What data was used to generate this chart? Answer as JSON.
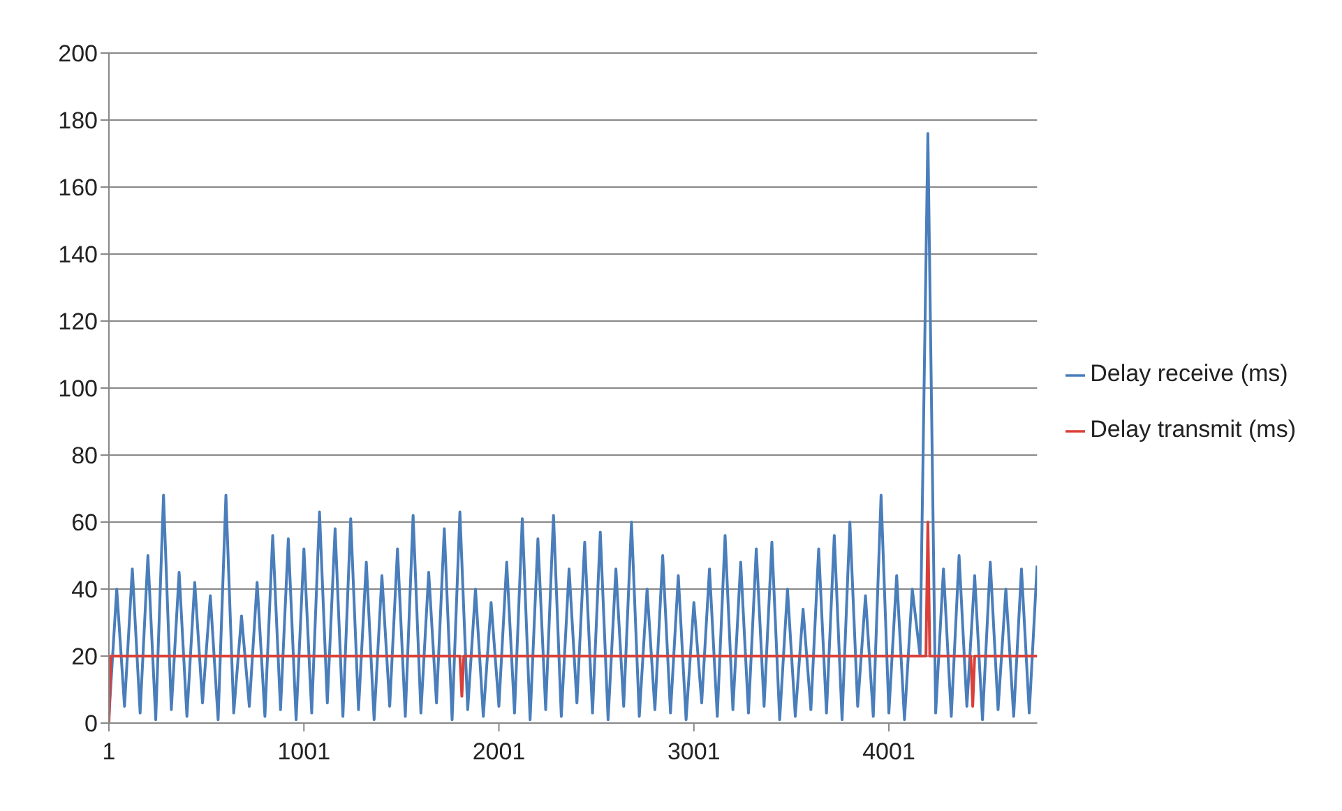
{
  "chart_data": {
    "type": "line",
    "x": [
      1,
      41,
      81,
      121,
      161,
      201,
      241,
      281,
      321,
      361,
      401,
      441,
      481,
      521,
      561,
      601,
      641,
      681,
      721,
      761,
      801,
      841,
      881,
      921,
      961,
      1001,
      1041,
      1081,
      1121,
      1161,
      1201,
      1241,
      1281,
      1321,
      1361,
      1401,
      1441,
      1481,
      1521,
      1561,
      1601,
      1641,
      1681,
      1721,
      1761,
      1801,
      1841,
      1881,
      1921,
      1961,
      2001,
      2041,
      2081,
      2121,
      2161,
      2201,
      2241,
      2281,
      2321,
      2361,
      2401,
      2441,
      2481,
      2521,
      2561,
      2601,
      2641,
      2681,
      2721,
      2761,
      2801,
      2841,
      2881,
      2921,
      2961,
      3001,
      3041,
      3081,
      3121,
      3161,
      3201,
      3241,
      3281,
      3321,
      3361,
      3401,
      3441,
      3481,
      3521,
      3561,
      3601,
      3641,
      3681,
      3721,
      3761,
      3801,
      3841,
      3881,
      3921,
      3961,
      4001,
      4041,
      4081,
      4121,
      4161,
      4201,
      4241,
      4281,
      4321,
      4361,
      4401,
      4441,
      4481,
      4521,
      4561,
      4601,
      4641,
      4681,
      4721,
      4761
    ],
    "series": [
      {
        "name": "Delay receive (ms)",
        "color": "#4a7ebb",
        "values": [
          2,
          40,
          5,
          46,
          3,
          50,
          1,
          68,
          4,
          45,
          2,
          42,
          6,
          38,
          1,
          68,
          3,
          32,
          5,
          42,
          2,
          56,
          4,
          55,
          1,
          52,
          3,
          63,
          6,
          58,
          2,
          61,
          4,
          48,
          1,
          44,
          5,
          52,
          2,
          62,
          3,
          45,
          6,
          58,
          1,
          63,
          4,
          40,
          2,
          36,
          5,
          48,
          3,
          61,
          1,
          55,
          4,
          62,
          2,
          46,
          6,
          54,
          3,
          57,
          1,
          46,
          5,
          60,
          2,
          40,
          4,
          50,
          3,
          44,
          1,
          36,
          6,
          46,
          2,
          56,
          4,
          48,
          3,
          52,
          5,
          54,
          1,
          40,
          2,
          34,
          4,
          52,
          3,
          56,
          1,
          60,
          5,
          38,
          2,
          68,
          3,
          44,
          1,
          40,
          20,
          176,
          3,
          46,
          2,
          50,
          5,
          44,
          1,
          48,
          4,
          40,
          2,
          46,
          3,
          47
        ]
      },
      {
        "name": "Delay transmit (ms)",
        "color": "#d9403a",
        "x": [
          1,
          11,
          1801,
          1811,
          1821,
          4191,
          4201,
          4211,
          4421,
          4431,
          4441,
          4761
        ],
        "values": [
          0,
          20,
          20,
          8,
          20,
          20,
          60,
          20,
          20,
          5,
          20,
          20
        ]
      }
    ],
    "xlim": [
      1,
      4761
    ],
    "xticks": [
      1,
      1001,
      2001,
      3001,
      4001
    ],
    "ylim": [
      0,
      200
    ],
    "yticks": [
      0,
      20,
      40,
      60,
      80,
      100,
      120,
      140,
      160,
      180,
      200
    ],
    "grid": "y",
    "legend": "right",
    "marker": "none",
    "line_style": "solid"
  }
}
